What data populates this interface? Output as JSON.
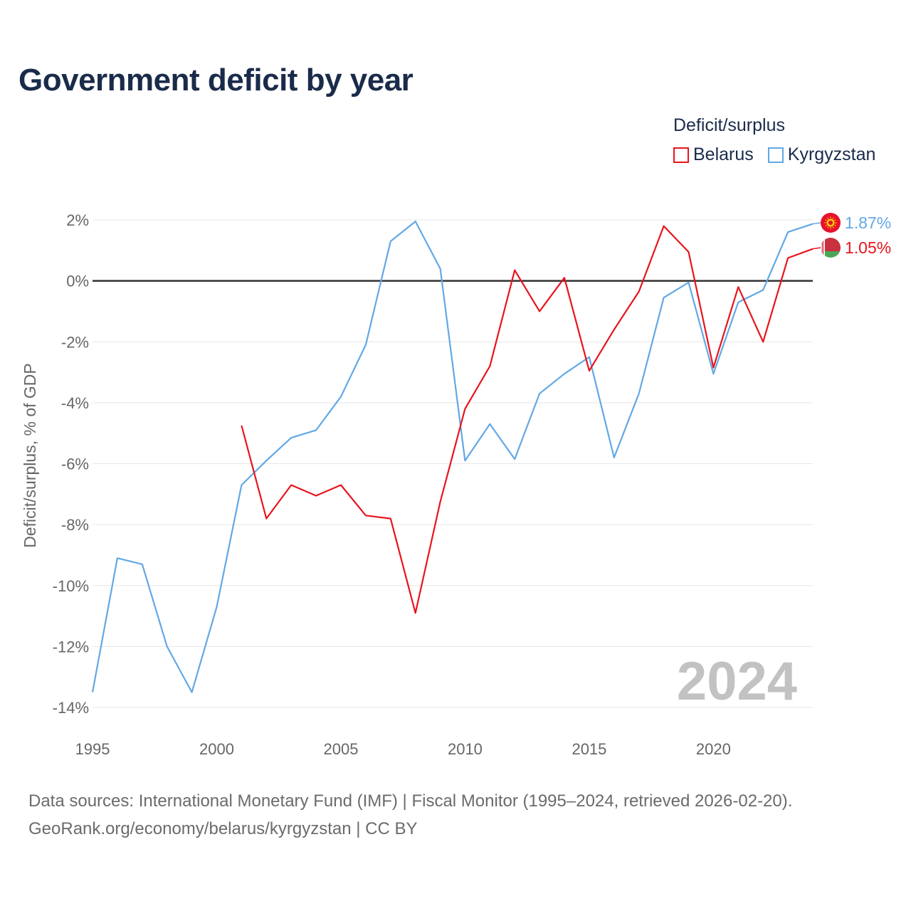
{
  "title": "Government deficit by year",
  "legend": {
    "title": "Deficit/surplus",
    "items": [
      {
        "label": "Belarus",
        "color": "#e8141c"
      },
      {
        "label": "Kyrgyzstan",
        "color": "#62a8e5"
      }
    ]
  },
  "footer": {
    "line1": "Data sources: International Monetary Fund (IMF) | Fiscal Monitor (1995–2024, retrieved 2026-02-20).",
    "line2": "GeoRank.org/economy/belarus/kyrgyzstan | CC BY"
  },
  "chart_data": {
    "type": "line",
    "title": "Government deficit by year",
    "xlabel": "",
    "ylabel": "Deficit/surplus, % of GDP",
    "year_watermark": "2024",
    "xlim": [
      1995,
      2024
    ],
    "ylim": [
      -14,
      2
    ],
    "x_ticks": [
      {
        "value": 1995,
        "label": "1995"
      },
      {
        "value": 2000,
        "label": "2000"
      },
      {
        "value": 2005,
        "label": "2005"
      },
      {
        "value": 2010,
        "label": "2010"
      },
      {
        "value": 2015,
        "label": "2015"
      },
      {
        "value": 2020,
        "label": "2020"
      }
    ],
    "y_ticks": [
      {
        "value": 2,
        "label": "2%"
      },
      {
        "value": 0,
        "label": "0%"
      },
      {
        "value": -2,
        "label": "-2%"
      },
      {
        "value": -4,
        "label": "-4%"
      },
      {
        "value": -6,
        "label": "-6%"
      },
      {
        "value": -8,
        "label": "-8%"
      },
      {
        "value": -10,
        "label": "-10%"
      },
      {
        "value": -12,
        "label": "-12%"
      },
      {
        "value": -14,
        "label": "-14%"
      }
    ],
    "series": [
      {
        "name": "Kyrgyzstan",
        "color": "#62a8e5",
        "end_label": "1.87%",
        "flag": "kyrgyzstan-flag",
        "x": [
          1995,
          1996,
          1997,
          1998,
          1999,
          2000,
          2001,
          2002,
          2003,
          2004,
          2005,
          2006,
          2007,
          2008,
          2009,
          2010,
          2011,
          2012,
          2013,
          2014,
          2015,
          2016,
          2017,
          2018,
          2019,
          2020,
          2021,
          2022,
          2023,
          2024
        ],
        "values": [
          -13.5,
          -9.1,
          -9.3,
          -12.0,
          -13.5,
          -10.7,
          -6.7,
          -5.9,
          -5.15,
          -4.9,
          -3.8,
          -2.1,
          1.3,
          1.95,
          0.4,
          -5.9,
          -4.7,
          -5.85,
          -3.7,
          -3.05,
          -2.5,
          -5.8,
          -3.7,
          -0.55,
          -0.05,
          -3.05,
          -0.7,
          -0.3,
          1.6,
          1.87
        ]
      },
      {
        "name": "Belarus",
        "color": "#e8141c",
        "end_label": "1.05%",
        "flag": "belarus-flag",
        "x": [
          2001,
          2002,
          2003,
          2004,
          2005,
          2006,
          2007,
          2008,
          2009,
          2010,
          2011,
          2012,
          2013,
          2014,
          2015,
          2016,
          2017,
          2018,
          2019,
          2020,
          2021,
          2022,
          2023,
          2024
        ],
        "values": [
          -4.75,
          -7.8,
          -6.7,
          -7.05,
          -6.7,
          -7.7,
          -7.8,
          -10.9,
          -7.25,
          -4.2,
          -2.8,
          0.35,
          -1.0,
          0.1,
          -2.95,
          -1.6,
          -0.35,
          1.8,
          0.95,
          -2.85,
          -0.2,
          -2.0,
          0.75,
          1.05
        ]
      }
    ]
  }
}
